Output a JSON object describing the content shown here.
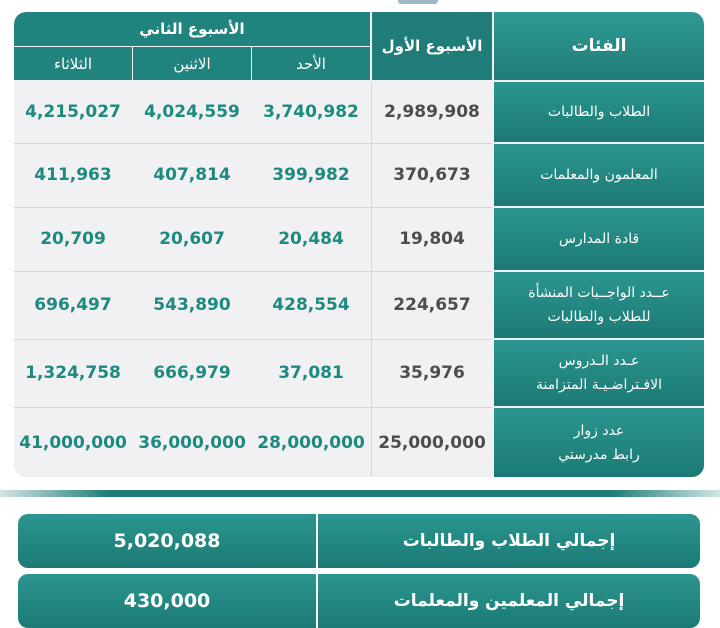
{
  "header": {
    "categories_label": "الفئات",
    "week1_label": "الأسبوع الأول",
    "week2_label": "الأسبوع الثاني",
    "days": [
      "الأحد",
      "الاثنين",
      "الثلاثاء"
    ]
  },
  "rows": [
    {
      "category": [
        "الطلاب والطالبات"
      ],
      "week1": "2,989,908",
      "week2": [
        "3,740,982",
        "4,024,559",
        "4,215,027"
      ]
    },
    {
      "category": [
        "المعلمون والمعلمات"
      ],
      "week1": "370,673",
      "week2": [
        "399,982",
        "407,814",
        "411,963"
      ]
    },
    {
      "category": [
        "قادة المدارس"
      ],
      "week1": "19,804",
      "week2": [
        "20,484",
        "20,607",
        "20,709"
      ]
    },
    {
      "category": [
        "عــدد الواجــبات المنشأة",
        "للطلاب والطالبات"
      ],
      "week1": "224,657",
      "week2": [
        "428,554",
        "543,890",
        "696,497"
      ]
    },
    {
      "category": [
        "عـدد الـدروس",
        "الافـتراضـيـة المتزامنة"
      ],
      "week1": "35,976",
      "week2": [
        "37,081",
        "666,979",
        "1,324,758"
      ]
    },
    {
      "category": [
        "عدد زوار",
        "رابط مدرستي"
      ],
      "week1": "25,000,000",
      "week2": [
        "28,000,000",
        "36,000,000",
        "41,000,000"
      ]
    }
  ],
  "totals": [
    {
      "label": "إجمالي الطلاب والطالبات",
      "value": "5,020,088"
    },
    {
      "label": "إجمالي المعلمين والمعلمات",
      "value": "430,000"
    }
  ]
}
